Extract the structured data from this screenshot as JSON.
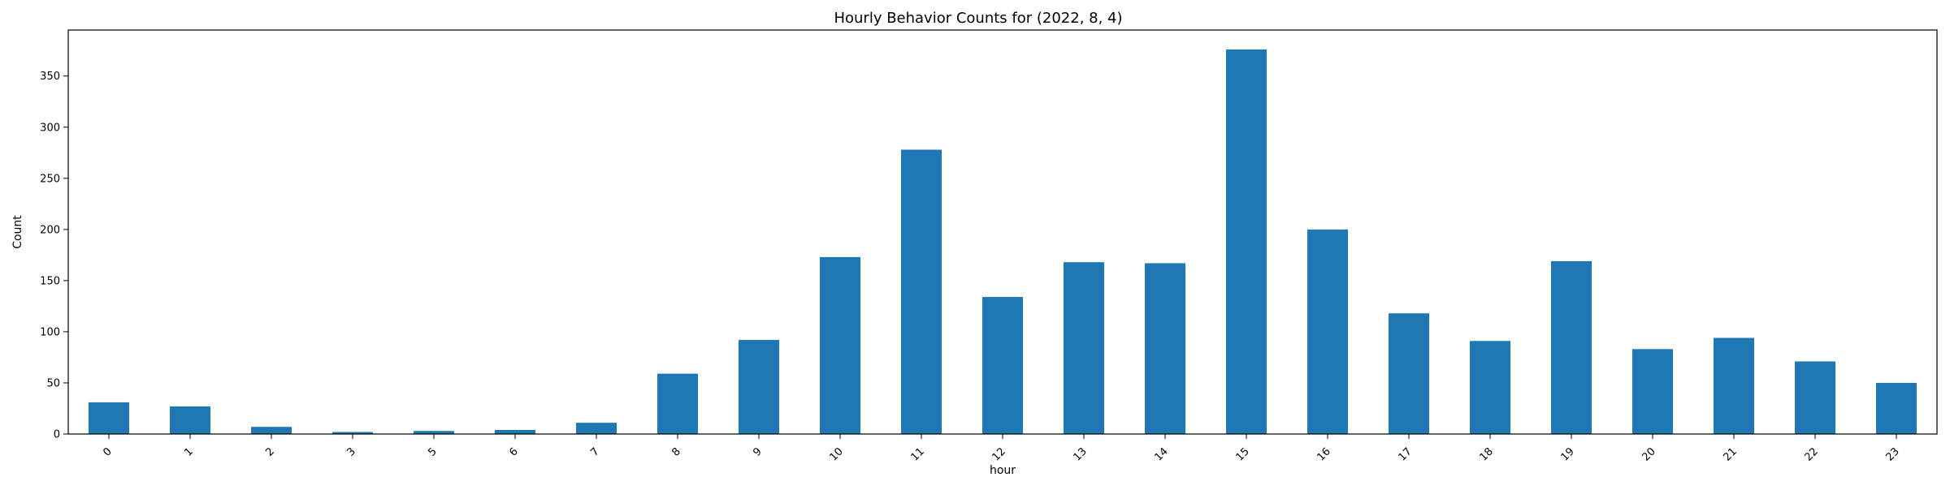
{
  "chart_data": {
    "type": "bar",
    "title": "Hourly Behavior Counts for (2022, 8, 4)",
    "xlabel": "hour",
    "ylabel": "Count",
    "categories": [
      "0",
      "1",
      "2",
      "3",
      "5",
      "6",
      "7",
      "8",
      "9",
      "10",
      "11",
      "12",
      "13",
      "14",
      "15",
      "16",
      "17",
      "18",
      "19",
      "20",
      "21",
      "22",
      "23"
    ],
    "values": [
      31,
      27,
      7,
      2,
      3,
      4,
      11,
      59,
      92,
      173,
      278,
      134,
      168,
      167,
      376,
      200,
      118,
      91,
      169,
      83,
      94,
      71,
      50
    ],
    "ylim": [
      0,
      395
    ],
    "yticks": [
      0,
      50,
      100,
      150,
      200,
      250,
      300,
      350
    ],
    "bar_color": "#1f77b4",
    "grid": false,
    "legend": "none",
    "xtick_rotation": "45 degrees"
  }
}
